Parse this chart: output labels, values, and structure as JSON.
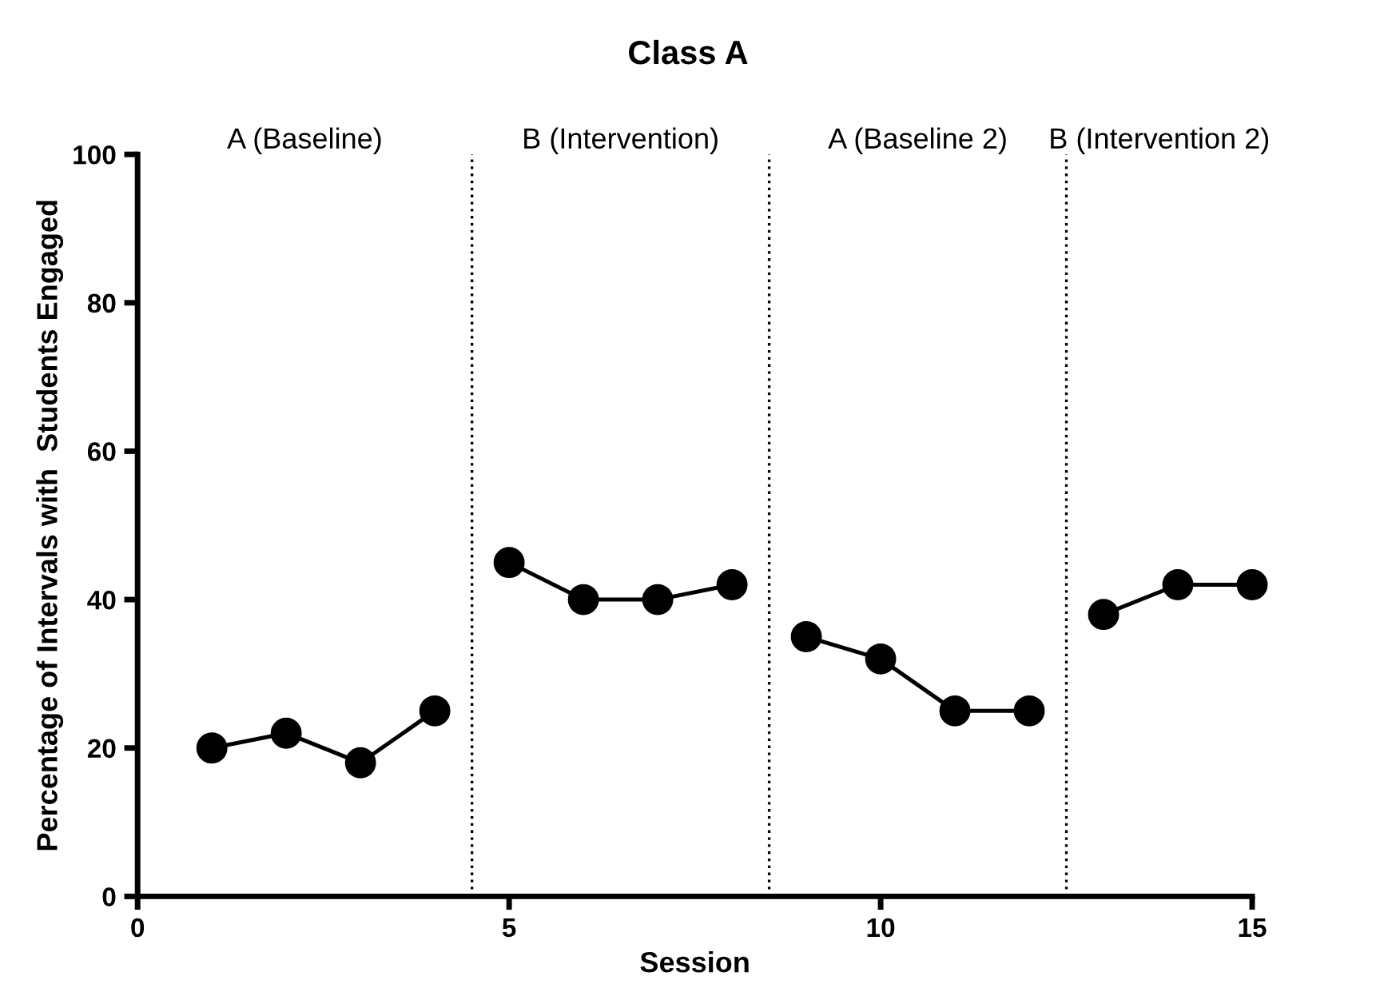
{
  "chart_data": {
    "type": "line",
    "title": "Class A",
    "xlabel": "Session",
    "ylabel": "Percentage of Intervals with  Students Engaged",
    "series": [
      {
        "color": "#000000",
        "x": [
          1,
          2,
          3,
          4
        ],
        "values": [
          20,
          22,
          18,
          25
        ]
      },
      {
        "color": "#000000",
        "x": [
          5,
          6,
          7,
          8
        ],
        "values": [
          45,
          40,
          40,
          42
        ]
      },
      {
        "color": "#000000",
        "x": [
          9,
          10,
          11,
          12
        ],
        "values": [
          35,
          32,
          25,
          25
        ]
      },
      {
        "color": "#000000",
        "x": [
          13,
          14,
          15
        ],
        "values": [
          38,
          42,
          42
        ]
      }
    ],
    "xlim": [
      0,
      15
    ],
    "ylim": [
      0,
      100
    ],
    "xticks": [
      0,
      5,
      10,
      15
    ],
    "yticks": [
      0,
      20,
      40,
      60,
      80,
      100
    ],
    "ref_lines": [
      {
        "axis": "x",
        "value": 4.5,
        "color": "#000000",
        "line_style": "dotted"
      },
      {
        "axis": "x",
        "value": 8.5,
        "color": "#000000",
        "line_style": "dotted"
      },
      {
        "axis": "x",
        "value": 12.5,
        "color": "#000000",
        "line_style": "dotted"
      }
    ],
    "annotations": [
      "A (Baseline)",
      "B (Intervention)",
      "A (Baseline 2)",
      "B (Intervention 2)"
    ],
    "marker": "circle",
    "line_style": "solid",
    "grid": false,
    "legend": false
  }
}
